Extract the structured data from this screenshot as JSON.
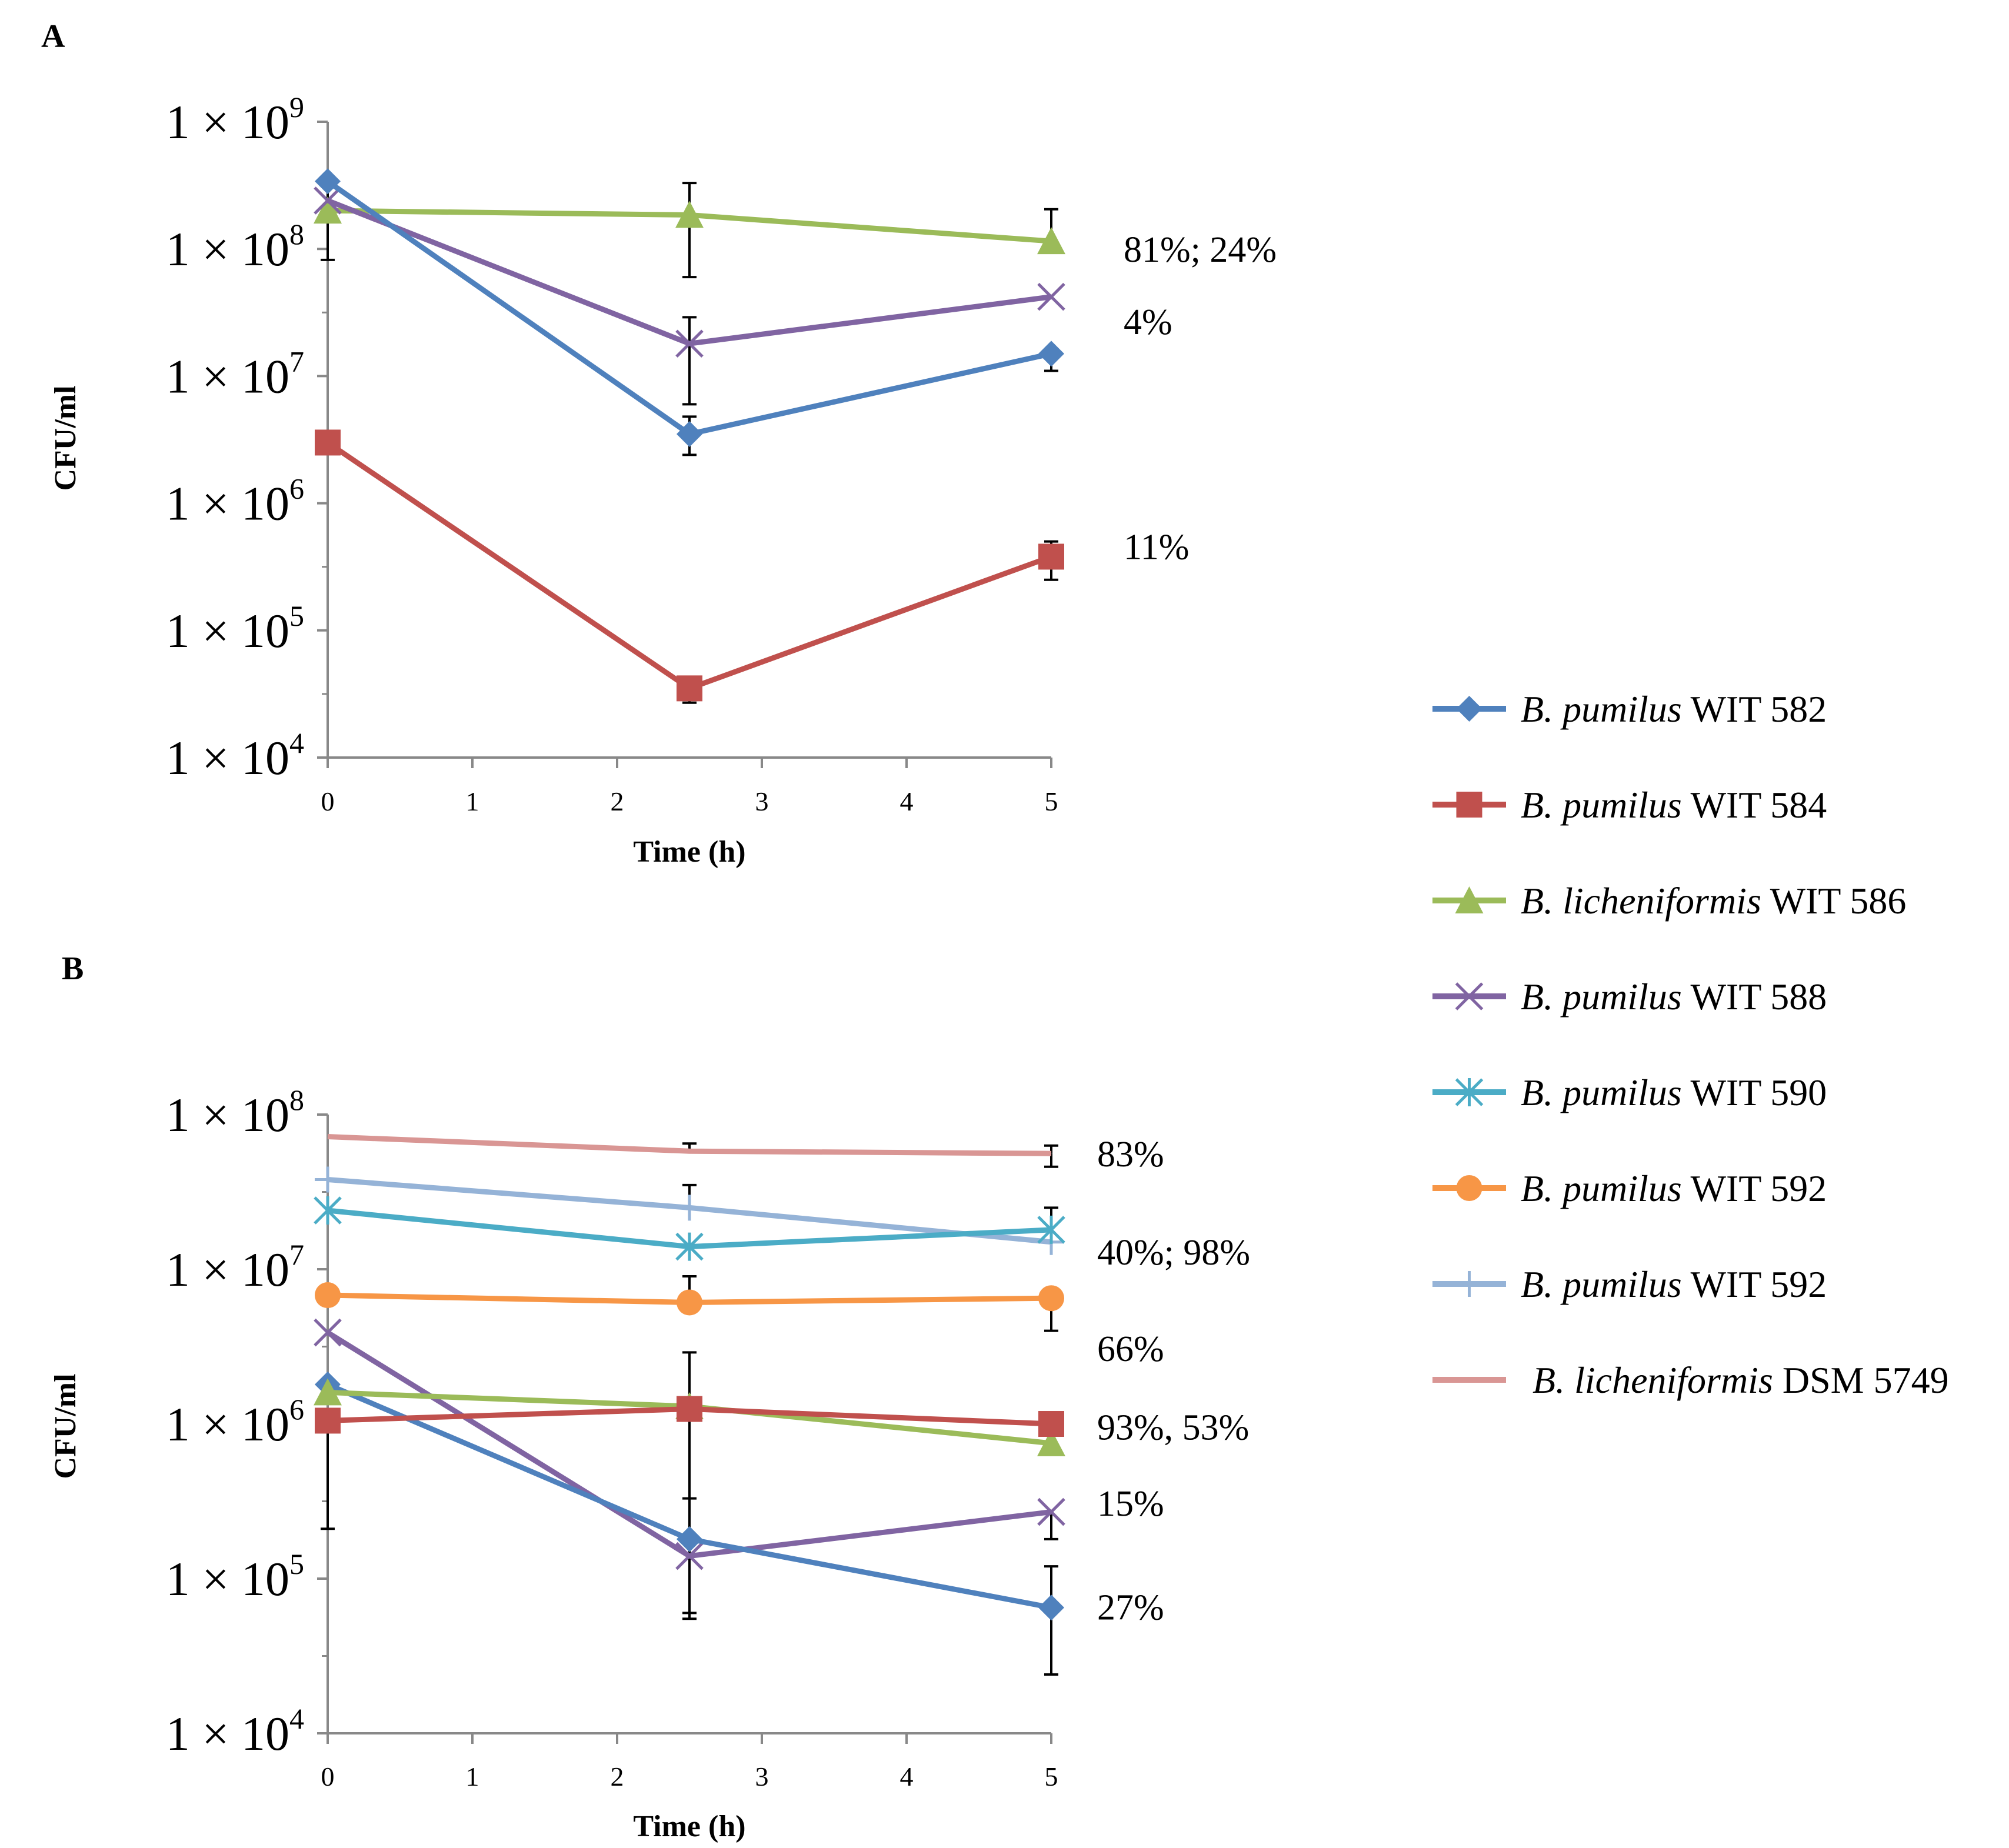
{
  "colors": {
    "wit582": "#4F81BD",
    "wit584": "#C0504D",
    "wit586": "#9BBB59",
    "wit588": "#8064A2",
    "wit590": "#4BACC6",
    "wit592_orange": "#F79646",
    "wit592_light": "#95B3D7",
    "dsm5749": "#D99694",
    "axis": "#888888",
    "errorbar": "#000000"
  },
  "legend": [
    {
      "key": "wit582",
      "species": "B. pumilus",
      "strain": "WIT 582",
      "marker": "diamond"
    },
    {
      "key": "wit584",
      "species": "B. pumilus",
      "strain": "WIT 584",
      "marker": "square"
    },
    {
      "key": "wit586",
      "species": "B. licheniformis",
      "strain": "WIT 586",
      "marker": "triangle"
    },
    {
      "key": "wit588",
      "species": "B. pumilus",
      "strain": "WIT 588",
      "marker": "x"
    },
    {
      "key": "wit590",
      "species": "B. pumilus",
      "strain": "WIT 590",
      "marker": "star"
    },
    {
      "key": "wit592_orange",
      "species": "B. pumilus",
      "strain": "WIT 592",
      "marker": "circle"
    },
    {
      "key": "wit592_light",
      "species": "B. pumilus",
      "strain": "WIT 592",
      "marker": "plus"
    },
    {
      "key": "dsm5749",
      "species": "B. licheniformis",
      "strain": "DSM 5749",
      "marker": "none"
    }
  ],
  "chart_data": [
    {
      "type": "line",
      "panel": "A",
      "title": "",
      "xlabel": "Time (h)",
      "ylabel": "CFU/ml",
      "yscale": "log",
      "ylim": [
        10000,
        1000000000
      ],
      "xlim": [
        0,
        5
      ],
      "xticks": [
        "0",
        "1",
        "2",
        "3",
        "4",
        "5"
      ],
      "yticks": [
        {
          "mant": "1 × 10",
          "exp": "9"
        },
        {
          "mant": "1 × 10",
          "exp": "8"
        },
        {
          "mant": "1 × 10",
          "exp": "7"
        },
        {
          "mant": "1 × 10",
          "exp": "6"
        },
        {
          "mant": "1 × 10",
          "exp": "5"
        },
        {
          "mant": "1 × 10",
          "exp": "4"
        }
      ],
      "x": [
        0,
        2.5,
        5
      ],
      "series": [
        {
          "key": "wit586",
          "values": [
            200000000,
            185000000,
            115000000
          ],
          "err_high": [
            null,
            330000000,
            205000000
          ],
          "err_low": [
            null,
            60000000,
            null
          ]
        },
        {
          "key": "wit588",
          "values": [
            240000000,
            18000000,
            42000000
          ],
          "err_high": [
            null,
            29000000,
            null
          ],
          "err_low": [
            null,
            6000000,
            null
          ]
        },
        {
          "key": "wit582",
          "values": [
            340000000,
            3500000,
            15000000
          ],
          "err_high": [
            null,
            4800000,
            null
          ],
          "err_low": [
            82000000,
            2400000,
            11000000
          ]
        },
        {
          "key": "wit584",
          "values": [
            3000000,
            35000,
            380000
          ],
          "err_high": [
            null,
            null,
            500000
          ],
          "err_low": [
            null,
            27000,
            250000
          ]
        }
      ],
      "annotations": [
        {
          "text": "81%; 24%",
          "x": 5,
          "y": 100000000
        },
        {
          "text": "4%",
          "x": 5,
          "y": 27000000
        },
        {
          "text": "11%",
          "x": 5,
          "y": 460000
        }
      ]
    },
    {
      "type": "line",
      "panel": "B",
      "title": "",
      "xlabel": "Time (h)",
      "ylabel": "CFU/ml",
      "yscale": "log",
      "ylim": [
        10000,
        100000000
      ],
      "xlim": [
        0,
        5
      ],
      "xticks": [
        "0",
        "1",
        "2",
        "3",
        "4",
        "5"
      ],
      "yticks": [
        {
          "mant": "1 × 10",
          "exp": "8"
        },
        {
          "mant": "1 × 10",
          "exp": "7"
        },
        {
          "mant": "1 × 10",
          "exp": "6"
        },
        {
          "mant": "1 × 10",
          "exp": "5"
        },
        {
          "mant": "1 × 10",
          "exp": "4"
        }
      ],
      "x": [
        0,
        2.5,
        5
      ],
      "series": [
        {
          "key": "dsm5749",
          "values": [
            72000000,
            58000000,
            56000000
          ],
          "err_high": [
            null,
            65000000,
            63000000
          ],
          "err_low": [
            null,
            null,
            46000000
          ]
        },
        {
          "key": "wit592_light",
          "values": [
            38000000,
            25000000,
            15000000
          ],
          "err_high": [
            null,
            35000000,
            null
          ],
          "err_low": [
            null,
            null,
            null
          ]
        },
        {
          "key": "wit590",
          "values": [
            24000000,
            14000000,
            18000000
          ],
          "err_high": [
            null,
            null,
            25000000
          ],
          "err_low": [
            null,
            null,
            null
          ]
        },
        {
          "key": "wit592_orange",
          "values": [
            6800000,
            6100000,
            6500000
          ],
          "err_high": [
            null,
            9000000,
            null
          ],
          "err_low": [
            null,
            null,
            4000000
          ]
        },
        {
          "key": "wit588",
          "values": [
            3900000,
            140000,
            270000
          ],
          "err_high": [
            null,
            330000,
            null
          ],
          "err_low": [
            null,
            55000,
            180000
          ]
        },
        {
          "key": "wit582",
          "values": [
            1800000,
            180000,
            65000
          ],
          "err_high": [
            null,
            null,
            120000
          ],
          "err_low": [
            null,
            null,
            24000
          ]
        },
        {
          "key": "wit586",
          "values": [
            1600000,
            1300000,
            750000
          ],
          "err_high": [
            null,
            2900000,
            null
          ],
          "err_low": [
            null,
            null,
            null
          ]
        },
        {
          "key": "wit584",
          "values": [
            1050000,
            1250000,
            1000000
          ],
          "err_high": [
            null,
            null,
            null
          ],
          "err_low": [
            210000,
            60000,
            900000
          ]
        }
      ],
      "annotations": [
        {
          "text": "83%",
          "x": 5,
          "y": 56000000
        },
        {
          "text": "40%; 98%",
          "x": 5,
          "y": 13000000
        },
        {
          "text": "66%",
          "x": 5,
          "y": 3100000
        },
        {
          "text": "93%, 53%",
          "x": 5,
          "y": 960000
        },
        {
          "text": "15%",
          "x": 5,
          "y": 310000
        },
        {
          "text": "27%",
          "x": 5,
          "y": 66000
        }
      ]
    }
  ]
}
